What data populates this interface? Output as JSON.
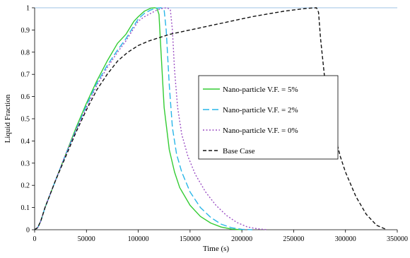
{
  "chart_data": {
    "type": "line",
    "xlabel": "Time (s)",
    "ylabel": "Liquid Fraction",
    "xlim": [
      0,
      350000
    ],
    "ylim": [
      0,
      1
    ],
    "x_ticks": [
      "0",
      "50000",
      "100000",
      "150000",
      "200000",
      "250000",
      "300000",
      "350000"
    ],
    "y_ticks": [
      "0",
      "0.1",
      "0.2",
      "0.3",
      "0.4",
      "0.5",
      "0.6",
      "0.7",
      "0.8",
      "0.9",
      "1"
    ],
    "grid": "horizontal line at y = 1 only",
    "legend_position": "center-right",
    "series": [
      {
        "name": "Nano-particle V.F. = 5%",
        "color": "#33cc33",
        "dash": "solid",
        "x": [
          0,
          3000,
          6000,
          10000,
          20000,
          30000,
          40000,
          50000,
          60000,
          70000,
          80000,
          88000,
          92000,
          96000,
          100000,
          106000,
          112000,
          116000,
          118000,
          120000,
          122000,
          125000,
          130000,
          135000,
          140000,
          150000,
          160000,
          170000,
          180000,
          190000,
          200000
        ],
        "y": [
          0,
          0.01,
          0.04,
          0.1,
          0.22,
          0.34,
          0.46,
          0.57,
          0.67,
          0.76,
          0.84,
          0.88,
          0.91,
          0.94,
          0.96,
          0.985,
          0.998,
          1.0,
          0.998,
          0.97,
          0.8,
          0.55,
          0.36,
          0.26,
          0.19,
          0.11,
          0.06,
          0.03,
          0.012,
          0.003,
          0.0
        ]
      },
      {
        "name": "Nano-particle V.F. = 2%",
        "color": "#29b6e8",
        "dash": "long-dash",
        "x": [
          0,
          3000,
          6000,
          10000,
          20000,
          30000,
          40000,
          50000,
          60000,
          70000,
          80000,
          88000,
          92000,
          96000,
          100000,
          106000,
          112000,
          118000,
          122000,
          125000,
          127000,
          130000,
          133000,
          137000,
          142000,
          150000,
          160000,
          170000,
          180000,
          190000,
          200000,
          210000
        ],
        "y": [
          0,
          0.01,
          0.04,
          0.1,
          0.22,
          0.34,
          0.45,
          0.56,
          0.66,
          0.74,
          0.81,
          0.86,
          0.89,
          0.92,
          0.95,
          0.975,
          0.99,
          0.998,
          1.0,
          0.99,
          0.9,
          0.65,
          0.46,
          0.34,
          0.26,
          0.17,
          0.1,
          0.055,
          0.025,
          0.009,
          0.002,
          0.0
        ]
      },
      {
        "name": "Nano-particle V.F. = 0%",
        "color": "#9b4fc4",
        "dash": "dotted",
        "x": [
          0,
          3000,
          6000,
          10000,
          20000,
          30000,
          40000,
          50000,
          60000,
          70000,
          80000,
          88000,
          92000,
          96000,
          100000,
          106000,
          112000,
          118000,
          124000,
          128000,
          131000,
          133000,
          135000,
          138000,
          142000,
          148000,
          155000,
          165000,
          175000,
          185000,
          195000,
          205000,
          215000,
          225000
        ],
        "y": [
          0,
          0.01,
          0.04,
          0.1,
          0.22,
          0.34,
          0.45,
          0.55,
          0.65,
          0.73,
          0.8,
          0.85,
          0.88,
          0.91,
          0.94,
          0.96,
          0.975,
          0.99,
          0.998,
          1.0,
          0.99,
          0.9,
          0.72,
          0.55,
          0.43,
          0.33,
          0.25,
          0.17,
          0.11,
          0.065,
          0.033,
          0.013,
          0.004,
          0.0
        ]
      },
      {
        "name": "Base Case",
        "color": "#111111",
        "dash": "short-dash",
        "x": [
          0,
          3000,
          6000,
          10000,
          20000,
          30000,
          40000,
          50000,
          60000,
          70000,
          80000,
          90000,
          100000,
          110000,
          120000,
          130000,
          140000,
          150000,
          160000,
          170000,
          180000,
          190000,
          200000,
          210000,
          220000,
          230000,
          240000,
          250000,
          260000,
          268000,
          272000,
          274000,
          276000,
          280000,
          285000,
          290000,
          295000,
          300000,
          310000,
          320000,
          330000,
          340000
        ],
        "y": [
          0,
          0.01,
          0.04,
          0.1,
          0.22,
          0.33,
          0.44,
          0.54,
          0.63,
          0.7,
          0.76,
          0.8,
          0.83,
          0.85,
          0.865,
          0.88,
          0.89,
          0.9,
          0.91,
          0.92,
          0.93,
          0.94,
          0.95,
          0.96,
          0.968,
          0.976,
          0.984,
          0.99,
          0.996,
          0.999,
          1.0,
          0.98,
          0.86,
          0.68,
          0.53,
          0.42,
          0.33,
          0.26,
          0.15,
          0.07,
          0.02,
          0.0
        ]
      }
    ]
  }
}
